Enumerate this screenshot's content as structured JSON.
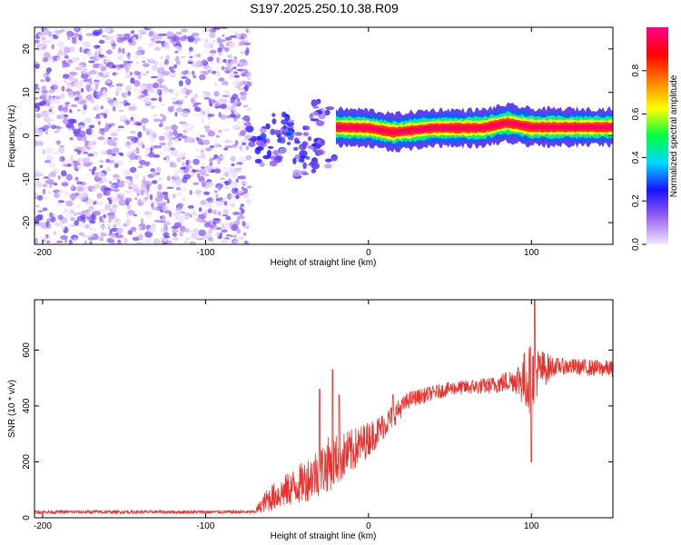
{
  "title": "S197.2025.250.10.38.R09",
  "chart_data": [
    {
      "type": "heatmap",
      "xlabel": "Height of straight line (km)",
      "ylabel": "Frequency (Hz)",
      "xlim": [
        -205,
        150
      ],
      "ylim": [
        -25,
        25
      ],
      "x_ticks": [
        -200,
        -100,
        0,
        100
      ],
      "y_ticks": [
        -20,
        -10,
        0,
        10,
        20
      ],
      "x_tick_labels": [
        "-200",
        "-100",
        "0",
        "100"
      ],
      "y_tick_labels": [
        "-20",
        "-10",
        "0",
        "10",
        "20"
      ],
      "noise_region_x": [
        -205,
        -73
      ],
      "ridge": [
        {
          "x": -20,
          "f": 2.0,
          "amp": 1.0
        },
        {
          "x": 0,
          "f": 1.8,
          "amp": 0.95
        },
        {
          "x": 15,
          "f": 0.8,
          "amp": 0.95
        },
        {
          "x": 40,
          "f": 1.8,
          "amp": 1.0
        },
        {
          "x": 70,
          "f": 1.8,
          "amp": 1.0
        },
        {
          "x": 85,
          "f": 3.0,
          "amp": 0.95
        },
        {
          "x": 100,
          "f": 2.0,
          "amp": 0.9
        },
        {
          "x": 150,
          "f": 2.0,
          "amp": 0.85
        }
      ],
      "blobs": [
        {
          "x": -68,
          "f": 0.5,
          "amp": 0.35
        },
        {
          "x": -62,
          "f": -4.0,
          "amp": 0.3
        },
        {
          "x": -55,
          "f": 2.0,
          "amp": 0.3
        },
        {
          "x": -50,
          "f": -1.5,
          "amp": 0.3
        },
        {
          "x": -45,
          "f": 0.5,
          "amp": 0.35
        },
        {
          "x": -40,
          "f": -6.5,
          "amp": 0.25
        },
        {
          "x": -35,
          "f": -3.0,
          "amp": 0.3
        },
        {
          "x": -30,
          "f": 5.0,
          "amp": 0.25
        },
        {
          "x": -28,
          "f": -4.0,
          "amp": 0.3
        }
      ]
    },
    {
      "type": "line",
      "xlabel": "Height of straight line (km)",
      "ylabel": "SNR (10 * v/v)",
      "xlim": [
        -205,
        150
      ],
      "ylim": [
        0,
        780
      ],
      "x_ticks": [
        -200,
        -100,
        0,
        100
      ],
      "y_ticks": [
        0,
        200,
        400,
        600
      ],
      "x_tick_labels": [
        "-200",
        "-100",
        "0",
        "100"
      ],
      "y_tick_labels": [
        "0",
        "200",
        "400",
        "600"
      ],
      "series": [
        {
          "name": "SNR",
          "color": "#e8322e",
          "profile": [
            {
              "x": -205,
              "base": 20,
              "jitter": 12
            },
            {
              "x": -70,
              "base": 20,
              "jitter": 12
            },
            {
              "x": -62,
              "base": 60,
              "jitter": 90
            },
            {
              "x": -40,
              "base": 120,
              "jitter": 150
            },
            {
              "x": -25,
              "base": 180,
              "jitter": 200
            },
            {
              "x": -10,
              "base": 230,
              "jitter": 160
            },
            {
              "x": 5,
              "base": 300,
              "jitter": 110
            },
            {
              "x": 25,
              "base": 420,
              "jitter": 60
            },
            {
              "x": 50,
              "base": 460,
              "jitter": 50
            },
            {
              "x": 75,
              "base": 470,
              "jitter": 60
            },
            {
              "x": 90,
              "base": 490,
              "jitter": 90
            },
            {
              "x": 98,
              "base": 480,
              "jitter": 260
            },
            {
              "x": 105,
              "base": 520,
              "jitter": 160
            },
            {
              "x": 115,
              "base": 540,
              "jitter": 60
            },
            {
              "x": 150,
              "base": 530,
              "jitter": 60
            }
          ],
          "peaks": [
            {
              "x": -30,
              "y": 460
            },
            {
              "x": -22,
              "y": 530
            },
            {
              "x": -18,
              "y": 440
            },
            {
              "x": 15,
              "y": 440
            },
            {
              "x": 100,
              "y": 200
            },
            {
              "x": 102,
              "y": 780
            }
          ]
        }
      ]
    }
  ],
  "colorbar": {
    "label": "Normalized spectral amplitude",
    "range": [
      0.0,
      1.0
    ],
    "ticks": [
      0.0,
      0.2,
      0.4,
      0.6,
      0.8
    ],
    "tick_labels": [
      "0.0",
      "0.2",
      "0.4",
      "0.6",
      "0.8"
    ],
    "stops": [
      "#f2e8ff",
      "#9a63f0",
      "#1a10ff",
      "#00d8ff",
      "#00ff40",
      "#ffff00",
      "#ff8000",
      "#ff0000",
      "#ff0090"
    ]
  }
}
